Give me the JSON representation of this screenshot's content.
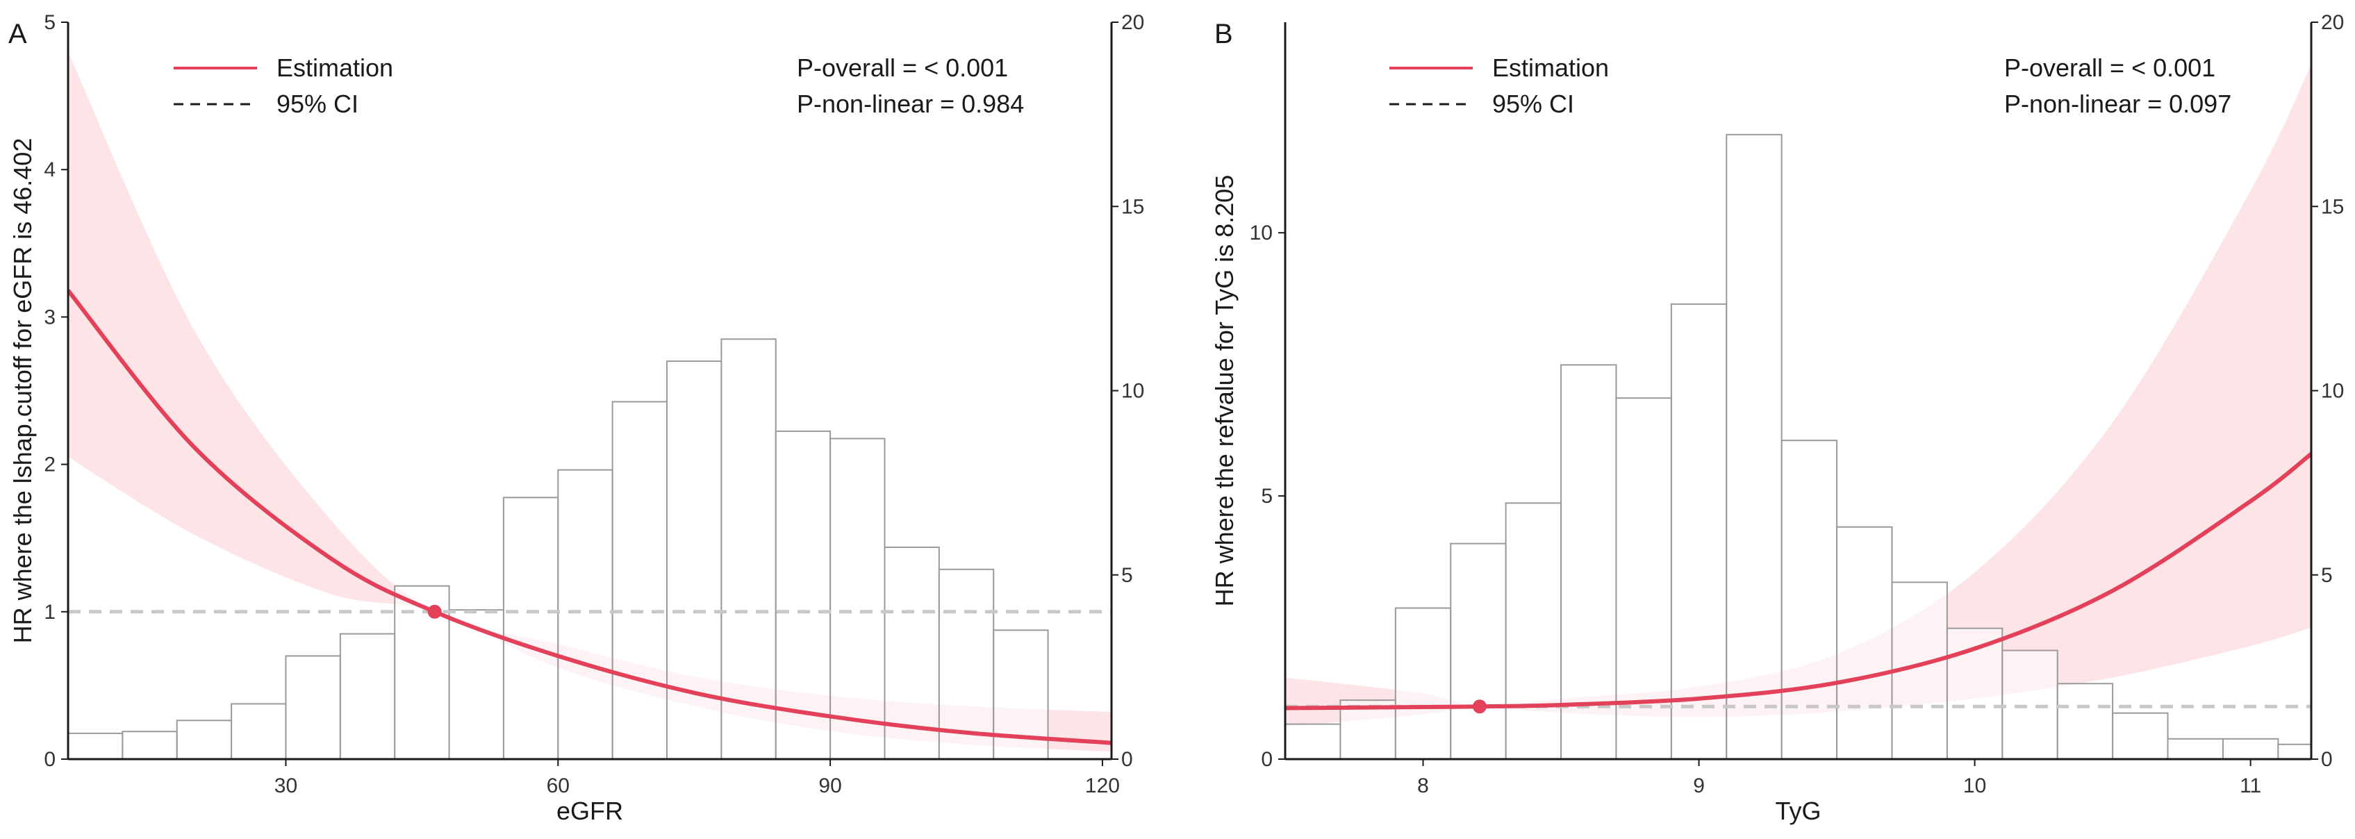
{
  "colors": {
    "estimation": "#e3405a",
    "ci_band": "#fde0e3",
    "reference": "#c8c8c8",
    "bar_stroke": "#9a9a9a",
    "bar_fill": "#ffffff"
  },
  "chart_data": [
    {
      "type": "line",
      "panel_label": "A",
      "xlabel": "eGFR",
      "ylabel": "HR where the lshap.cutoff for eGFR is 46.402",
      "xlim": [
        6,
        121
      ],
      "ylim": [
        0,
        5
      ],
      "y2lim": [
        0,
        20
      ],
      "x_ticks": [
        30,
        60,
        90,
        120
      ],
      "y_ticks": [
        0,
        1,
        2,
        3,
        4,
        5
      ],
      "y2_ticks": [
        0,
        5,
        10,
        15,
        20
      ],
      "legend": {
        "position": "top-left",
        "estimation_label": "Estimation",
        "ci_label": "95% CI"
      },
      "annotations": [
        "P-overall = < 0.001",
        "P-non-linear = 0.984"
      ],
      "reference_point": {
        "x": 46.402,
        "y": 1
      },
      "reference_line_y": 1,
      "curve": {
        "x": [
          6,
          20,
          35,
          46.402,
          60,
          75,
          90,
          105,
          121
        ],
        "y": [
          3.18,
          2.11,
          1.36,
          1.0,
          0.7,
          0.45,
          0.29,
          0.18,
          0.11
        ]
      },
      "ci_upper": {
        "x": [
          6,
          20,
          35,
          46.402,
          60,
          75,
          90,
          105,
          121
        ],
        "y": [
          4.8,
          2.9,
          1.62,
          1.0,
          0.78,
          0.56,
          0.43,
          0.36,
          0.32
        ]
      },
      "ci_lower": {
        "x": [
          6,
          20,
          35,
          46.402,
          60,
          75,
          90,
          105,
          121
        ],
        "y": [
          2.05,
          1.52,
          1.12,
          1.0,
          0.62,
          0.36,
          0.19,
          0.1,
          0.05
        ]
      },
      "histogram": {
        "bin_edges": [
          6,
          12,
          18,
          24,
          30,
          36,
          42,
          48,
          54,
          60,
          66,
          72,
          78,
          84,
          90,
          96,
          102,
          108,
          114
        ],
        "counts": [
          0.7,
          0.75,
          1.05,
          1.5,
          2.8,
          3.4,
          4.7,
          4.05,
          7.1,
          7.85,
          9.7,
          10.8,
          11.4,
          8.9,
          8.7,
          5.75,
          5.15,
          3.5
        ]
      }
    },
    {
      "type": "line",
      "panel_label": "B",
      "xlabel": "TyG",
      "ylabel": "HR where the refvalue for TyG is 8.205",
      "xlim": [
        7.5,
        11.22
      ],
      "ylim": [
        0,
        14
      ],
      "y2lim": [
        0,
        20
      ],
      "x_ticks": [
        8,
        9,
        10,
        11
      ],
      "y_ticks": [
        0,
        5,
        10
      ],
      "y2_ticks": [
        0,
        5,
        10,
        15,
        20
      ],
      "legend": {
        "position": "top-left",
        "estimation_label": "Estimation",
        "ci_label": "95% CI"
      },
      "annotations": [
        "P-overall = < 0.001",
        "P-non-linear = 0.097"
      ],
      "reference_point": {
        "x": 8.205,
        "y": 1
      },
      "reference_line_y": 1,
      "curve": {
        "x": [
          7.5,
          8.0,
          8.205,
          8.5,
          9.0,
          9.5,
          10.0,
          10.5,
          11.0,
          11.22
        ],
        "y": [
          0.97,
          0.99,
          1.0,
          1.03,
          1.15,
          1.45,
          2.1,
          3.2,
          4.9,
          5.8
        ]
      },
      "ci_upper": {
        "x": [
          7.5,
          8.0,
          8.205,
          8.5,
          9.0,
          9.5,
          10.0,
          10.5,
          11.0,
          11.22
        ],
        "y": [
          1.55,
          1.25,
          1.0,
          1.15,
          1.38,
          2.0,
          3.55,
          6.4,
          10.8,
          13.2
        ]
      },
      "ci_lower": {
        "x": [
          7.5,
          8.0,
          8.205,
          8.5,
          9.0,
          9.5,
          10.0,
          10.5,
          11.0,
          11.22
        ],
        "y": [
          0.62,
          0.85,
          1.0,
          0.88,
          0.8,
          0.9,
          1.15,
          1.55,
          2.15,
          2.5
        ]
      },
      "histogram": {
        "bin_edges": [
          7.5,
          7.7,
          7.9,
          8.1,
          8.3,
          8.5,
          8.7,
          8.9,
          9.1,
          9.3,
          9.5,
          9.7,
          9.9,
          10.1,
          10.3,
          10.5,
          10.7,
          10.9,
          11.1,
          11.22
        ],
        "counts": [
          0.95,
          1.6,
          4.1,
          5.85,
          6.95,
          10.7,
          9.8,
          12.35,
          16.95,
          8.65,
          6.3,
          4.8,
          3.55,
          2.95,
          2.05,
          1.25,
          0.55,
          0.55,
          0.4
        ]
      }
    }
  ]
}
